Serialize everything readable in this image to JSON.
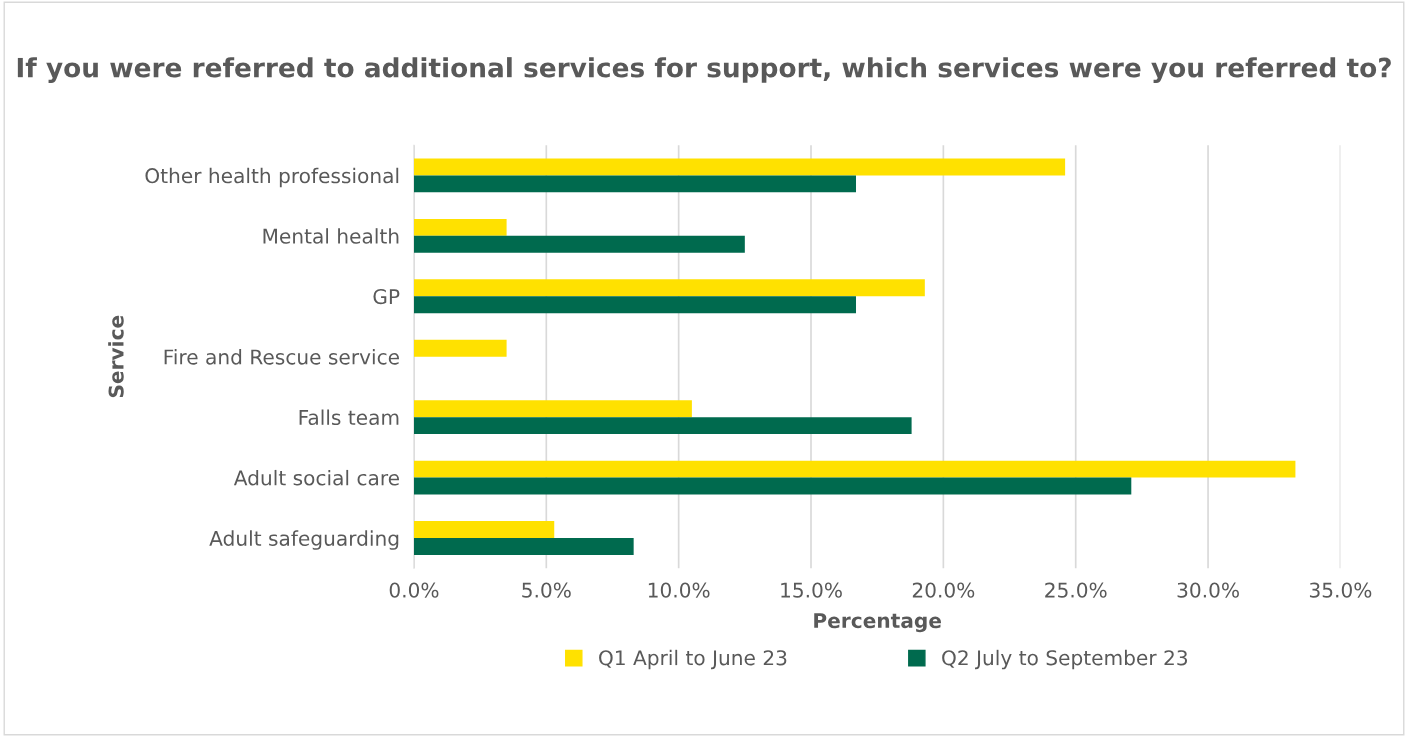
{
  "chart_data": {
    "type": "bar",
    "orientation": "horizontal",
    "title": "If you were referred to additional services for support, which services were you referred to?",
    "xlabel": "Percentage",
    "ylabel": "Service",
    "categories": [
      "Other health professional",
      "Mental health",
      "GP",
      "Fire and Rescue service",
      "Falls team",
      "Adult social care",
      "Adult safeguarding"
    ],
    "series": [
      {
        "name": "Q1 April to June 23",
        "color": "#ffe100",
        "values": [
          24.6,
          3.5,
          19.3,
          3.5,
          10.5,
          33.3,
          5.3
        ]
      },
      {
        "name": "Q2 July to September 23",
        "color": "#006a4e",
        "values": [
          16.7,
          12.5,
          16.7,
          null,
          18.8,
          27.1,
          8.3
        ]
      }
    ],
    "xlim": [
      0,
      35
    ],
    "xticks": [
      {
        "value": 0,
        "label": "0.0%"
      },
      {
        "value": 5,
        "label": "5.0%"
      },
      {
        "value": 10,
        "label": "10.0%"
      },
      {
        "value": 15,
        "label": "15.0%"
      },
      {
        "value": 20,
        "label": "20.0%"
      },
      {
        "value": 25,
        "label": "25.0%"
      },
      {
        "value": 30,
        "label": "30.0%"
      },
      {
        "value": 35,
        "label": "35.0%"
      }
    ],
    "grid": "x",
    "legend": "bottom"
  }
}
